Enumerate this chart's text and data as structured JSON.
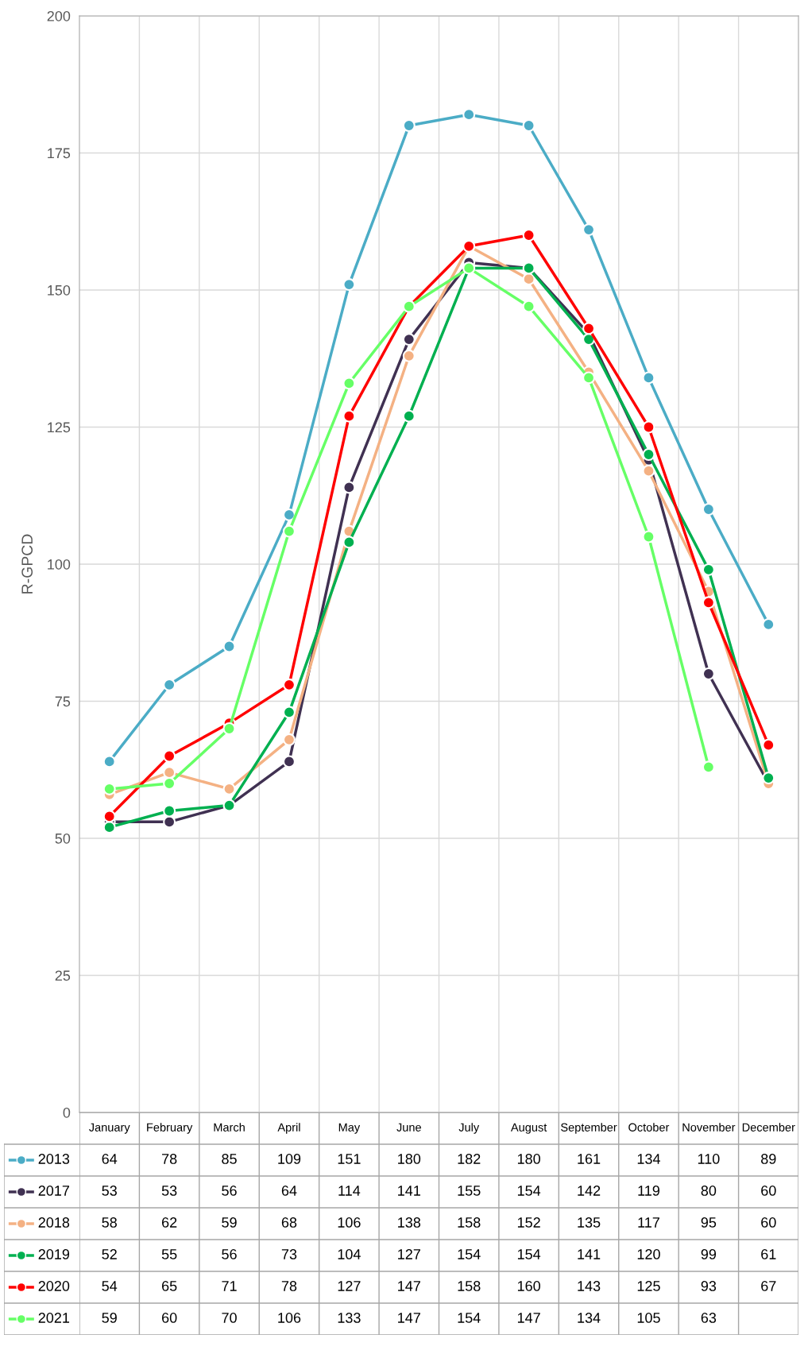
{
  "chart_data": {
    "type": "line",
    "ylabel": "R-GPCD",
    "categories": [
      "January",
      "February",
      "March",
      "April",
      "May",
      "June",
      "July",
      "August",
      "September",
      "October",
      "November",
      "December"
    ],
    "ylim": [
      0,
      200
    ],
    "yticks": [
      0,
      25,
      50,
      75,
      100,
      125,
      150,
      175,
      200
    ],
    "grid": true,
    "marker": "circle",
    "line_style": "solid",
    "legend": "bottom",
    "data_labels": true,
    "series": [
      {
        "name": "2013",
        "color": "#4bacc6",
        "values": [
          64,
          78,
          85,
          109,
          151,
          180,
          182,
          180,
          161,
          134,
          110,
          89
        ]
      },
      {
        "name": "2017",
        "color": "#403152",
        "values": [
          53,
          53,
          56,
          64,
          114,
          141,
          155,
          154,
          142,
          119,
          80,
          60
        ]
      },
      {
        "name": "2018",
        "color": "#f4b183",
        "values": [
          58,
          62,
          59,
          68,
          106,
          138,
          158,
          152,
          135,
          117,
          95,
          60
        ]
      },
      {
        "name": "2019",
        "color": "#00b050",
        "values": [
          52,
          55,
          56,
          73,
          104,
          127,
          154,
          154,
          141,
          120,
          99,
          61
        ]
      },
      {
        "name": "2020",
        "color": "#ff0000",
        "values": [
          54,
          65,
          71,
          78,
          127,
          147,
          158,
          160,
          143,
          125,
          93,
          67
        ]
      },
      {
        "name": "2021",
        "color": "#66ff66",
        "values": [
          59,
          60,
          70,
          106,
          133,
          147,
          154,
          147,
          134,
          105,
          63,
          null
        ]
      }
    ]
  }
}
